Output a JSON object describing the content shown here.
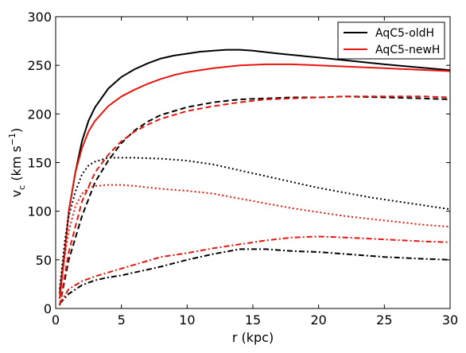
{
  "chart_data": {
    "type": "line",
    "xlabel": "r (kpc)",
    "ylabel": {
      "base": "v",
      "subscript": "c",
      "unit_prefix": " (km s",
      "unit_exponent": "−1",
      "unit_suffix": ")"
    },
    "xlim": [
      0,
      30
    ],
    "ylim": [
      0,
      300
    ],
    "xticks": [
      0,
      5,
      10,
      15,
      20,
      25,
      30
    ],
    "yticks": [
      0,
      50,
      100,
      150,
      200,
      250,
      300
    ],
    "grid": false,
    "legend_position": "top-right",
    "legend": [
      {
        "label": "AqC5-oldH",
        "color": "#000000"
      },
      {
        "label": "AqC5-newH",
        "color": "#e8150c"
      }
    ],
    "series": [
      {
        "name": "AqC5-oldH",
        "component": "total",
        "color": "#000000",
        "style": "solid",
        "points": [
          [
            0.3,
            15
          ],
          [
            0.7,
            60
          ],
          [
            1.0,
            100
          ],
          [
            1.5,
            140
          ],
          [
            2.0,
            172
          ],
          [
            2.5,
            193
          ],
          [
            3.0,
            207
          ],
          [
            4.0,
            226
          ],
          [
            5.0,
            238
          ],
          [
            6.0,
            246
          ],
          [
            7.0,
            252
          ],
          [
            8.0,
            257
          ],
          [
            9.0,
            260
          ],
          [
            10.0,
            262
          ],
          [
            11.0,
            264
          ],
          [
            12.0,
            265
          ],
          [
            13.0,
            266
          ],
          [
            14.0,
            266
          ],
          [
            15.0,
            265
          ],
          [
            17.0,
            262
          ],
          [
            20.0,
            258
          ],
          [
            25.0,
            251
          ],
          [
            30.0,
            245
          ]
        ]
      },
      {
        "name": "AqC5-newH",
        "component": "total",
        "color": "#e8150c",
        "style": "solid",
        "points": [
          [
            0.3,
            10
          ],
          [
            0.7,
            58
          ],
          [
            1.0,
            100
          ],
          [
            1.5,
            140
          ],
          [
            2.0,
            165
          ],
          [
            2.5,
            182
          ],
          [
            3.0,
            193
          ],
          [
            4.0,
            208
          ],
          [
            5.0,
            218
          ],
          [
            6.0,
            225
          ],
          [
            7.0,
            231
          ],
          [
            8.0,
            236
          ],
          [
            9.0,
            240
          ],
          [
            10.0,
            243
          ],
          [
            12.0,
            247
          ],
          [
            14.0,
            250
          ],
          [
            16.0,
            251
          ],
          [
            18.0,
            251
          ],
          [
            20.0,
            250
          ],
          [
            25.0,
            247
          ],
          [
            30.0,
            244
          ]
        ]
      },
      {
        "name": "AqC5-oldH",
        "component": "dashed",
        "color": "#000000",
        "style": "dashed",
        "points": [
          [
            0.3,
            3
          ],
          [
            1.0,
            50
          ],
          [
            2.0,
            95
          ],
          [
            3.0,
            130
          ],
          [
            4.0,
            152
          ],
          [
            5.0,
            170
          ],
          [
            6.0,
            183
          ],
          [
            7.0,
            192
          ],
          [
            8.0,
            199
          ],
          [
            10.0,
            207
          ],
          [
            12.0,
            212
          ],
          [
            14.0,
            215
          ],
          [
            16.0,
            216
          ],
          [
            18.0,
            217
          ],
          [
            20.0,
            217
          ],
          [
            22.0,
            218
          ],
          [
            25.0,
            217
          ],
          [
            28.0,
            216
          ],
          [
            30.0,
            215
          ]
        ]
      },
      {
        "name": "AqC5-newH",
        "component": "dashed",
        "color": "#e8150c",
        "style": "dashed",
        "points": [
          [
            0.3,
            3
          ],
          [
            1.0,
            58
          ],
          [
            2.0,
            110
          ],
          [
            3.0,
            140
          ],
          [
            4.0,
            158
          ],
          [
            5.0,
            172
          ],
          [
            6.0,
            182
          ],
          [
            7.0,
            189
          ],
          [
            8.0,
            195
          ],
          [
            10.0,
            203
          ],
          [
            12.0,
            208
          ],
          [
            14.0,
            212
          ],
          [
            16.0,
            215
          ],
          [
            18.0,
            216
          ],
          [
            20.0,
            217
          ],
          [
            22.0,
            218
          ],
          [
            25.0,
            218
          ],
          [
            28.0,
            218
          ],
          [
            30.0,
            217
          ]
        ]
      },
      {
        "name": "AqC5-oldH",
        "component": "dotted",
        "color": "#000000",
        "style": "dotted",
        "points": [
          [
            0.3,
            20
          ],
          [
            0.7,
            70
          ],
          [
            1.0,
            95
          ],
          [
            1.5,
            120
          ],
          [
            2.0,
            138
          ],
          [
            2.5,
            147
          ],
          [
            3.0,
            151
          ],
          [
            4.0,
            155
          ],
          [
            5.0,
            155
          ],
          [
            6.0,
            155
          ],
          [
            8.0,
            154
          ],
          [
            10.0,
            152
          ],
          [
            12.0,
            148
          ],
          [
            14.0,
            142
          ],
          [
            16.0,
            136
          ],
          [
            18.0,
            130
          ],
          [
            20.0,
            124
          ],
          [
            22.0,
            119
          ],
          [
            24.0,
            114
          ],
          [
            26.0,
            110
          ],
          [
            28.0,
            106
          ],
          [
            30.0,
            102
          ]
        ]
      },
      {
        "name": "AqC5-newH",
        "component": "dotted",
        "color": "#e8150c",
        "style": "dotted",
        "points": [
          [
            0.3,
            15
          ],
          [
            0.7,
            55
          ],
          [
            1.0,
            80
          ],
          [
            1.5,
            105
          ],
          [
            2.0,
            118
          ],
          [
            2.5,
            124
          ],
          [
            3.0,
            126
          ],
          [
            4.0,
            127
          ],
          [
            5.0,
            127
          ],
          [
            6.0,
            126
          ],
          [
            8.0,
            123
          ],
          [
            10.0,
            121
          ],
          [
            12.0,
            118
          ],
          [
            14.0,
            113
          ],
          [
            16.0,
            108
          ],
          [
            18.0,
            103
          ],
          [
            20.0,
            99
          ],
          [
            22.0,
            95
          ],
          [
            24.0,
            92
          ],
          [
            26.0,
            89
          ],
          [
            28.0,
            86
          ],
          [
            30.0,
            84
          ]
        ]
      },
      {
        "name": "AqC5-oldH",
        "component": "dash-dot",
        "color": "#000000",
        "style": "dashdot",
        "points": [
          [
            0.3,
            5
          ],
          [
            1.0,
            15
          ],
          [
            2.0,
            24
          ],
          [
            3.0,
            29
          ],
          [
            4.0,
            32
          ],
          [
            5.0,
            34
          ],
          [
            6.0,
            37
          ],
          [
            7.0,
            40
          ],
          [
            8.0,
            43
          ],
          [
            10.0,
            50
          ],
          [
            12.0,
            56
          ],
          [
            14.0,
            61
          ],
          [
            15.0,
            61
          ],
          [
            16.0,
            61
          ],
          [
            18.0,
            59
          ],
          [
            20.0,
            58
          ],
          [
            22.0,
            56
          ],
          [
            25.0,
            53
          ],
          [
            28.0,
            51
          ],
          [
            30.0,
            50
          ]
        ]
      },
      {
        "name": "AqC5-newH",
        "component": "dash-dot",
        "color": "#e8150c",
        "style": "dashdot",
        "points": [
          [
            0.3,
            5
          ],
          [
            1.0,
            20
          ],
          [
            2.0,
            28
          ],
          [
            3.0,
            33
          ],
          [
            4.0,
            37
          ],
          [
            5.0,
            41
          ],
          [
            6.0,
            45
          ],
          [
            7.0,
            49
          ],
          [
            8.0,
            53
          ],
          [
            10.0,
            57
          ],
          [
            12.0,
            62
          ],
          [
            14.0,
            66
          ],
          [
            16.0,
            70
          ],
          [
            18.0,
            73
          ],
          [
            20.0,
            74
          ],
          [
            22.0,
            73
          ],
          [
            25.0,
            71
          ],
          [
            28.0,
            69
          ],
          [
            30.0,
            68
          ]
        ]
      }
    ]
  }
}
